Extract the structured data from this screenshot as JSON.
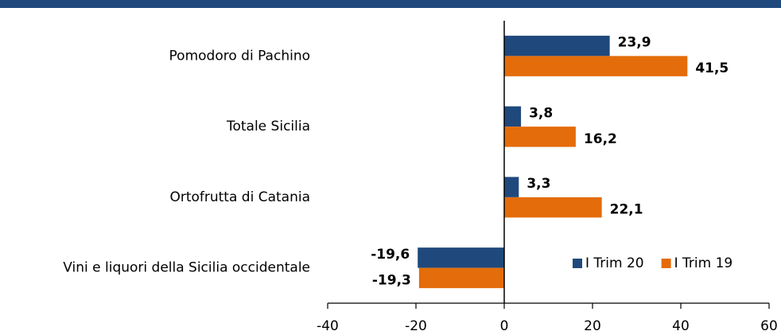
{
  "chart_data": {
    "type": "hbar",
    "categories": [
      "Pomodoro di Pachino",
      "Totale Sicilia",
      "Ortofrutta di Catania",
      "Vini e liquori della Sicilia occidentale"
    ],
    "series": [
      {
        "name": "I Trim 20",
        "color": "#1f497d",
        "values": [
          23.9,
          3.8,
          3.3,
          -19.6
        ],
        "value_labels": [
          "23,9",
          "3,8",
          "3,3",
          "-19,6"
        ]
      },
      {
        "name": "I Trim 19",
        "color": "#e46c0a",
        "values": [
          41.5,
          16.2,
          22.1,
          -19.3
        ],
        "value_labels": [
          "41,5",
          "16,2",
          "22,1",
          "-19,3"
        ]
      }
    ],
    "xlim": [
      -40,
      60
    ],
    "xticks": [
      -40,
      -20,
      0,
      20,
      40,
      60
    ],
    "legend": "lower right",
    "grid": false
  }
}
